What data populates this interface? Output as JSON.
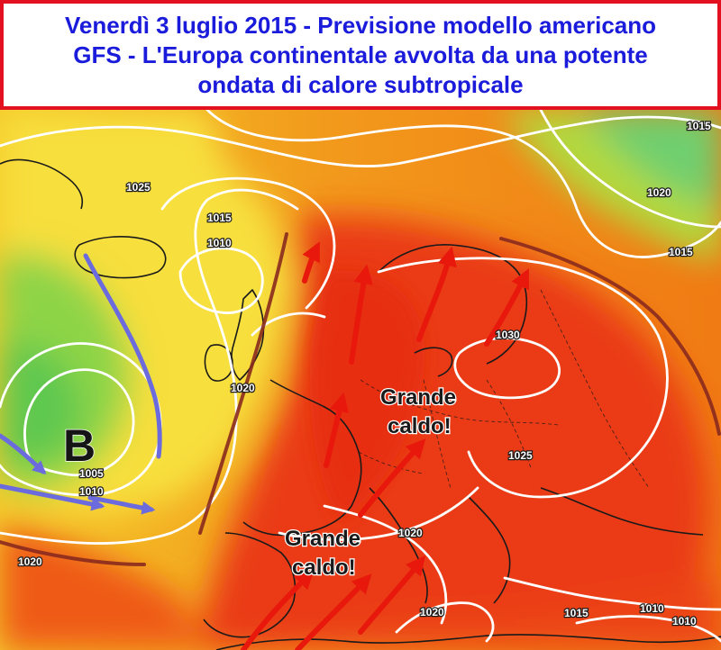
{
  "header": {
    "title_lines": [
      "Venerdì 3 luglio 2015 - Previsione modello americano",
      "GFS - L'Europa continentale avvolta da una potente",
      "ondata di calore subtropicale"
    ]
  },
  "map": {
    "low_pressure_symbol": "B",
    "annotations": [
      {
        "id": "caldo-centro",
        "lines": [
          "Grande",
          "caldo!"
        ]
      },
      {
        "id": "caldo-sud",
        "lines": [
          "Grande",
          "caldo!"
        ]
      }
    ],
    "isobar_labels": [
      "1015",
      "1025",
      "1015",
      "1010",
      "1020",
      "1015",
      "1030",
      "1020",
      "1025",
      "1005",
      "1010",
      "1020",
      "1020",
      "1020",
      "1015",
      "1010",
      "1010"
    ],
    "colors": {
      "title_text": "#1b1bdc",
      "title_border": "#e3101f",
      "isobars": "#ffffff",
      "coastlines": "#1a1a1a",
      "warm_arrows": "#e0180e",
      "cold_arrows": "#6464d8",
      "ridge_axis": "#8a2a1e",
      "heat_core": "#e8300f",
      "heat_outer": "#f5a020",
      "mild": "#f2e24a",
      "cool": "#6ed23c"
    },
    "icons": [
      "warm-air-arrow-icon",
      "cold-air-arrow-icon"
    ]
  }
}
